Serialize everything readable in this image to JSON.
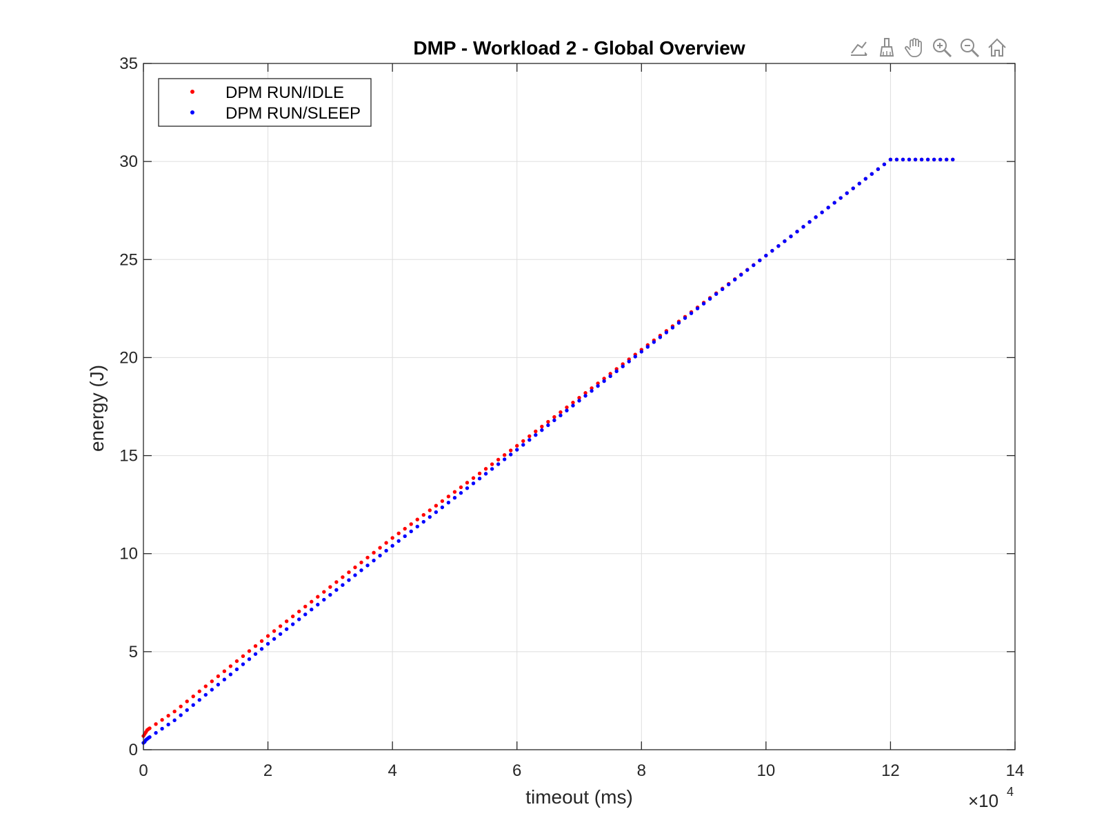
{
  "toolbar": {
    "icons": [
      "data-tips-icon",
      "brush-icon",
      "pan-hand-icon",
      "zoom-in-icon",
      "zoom-out-icon",
      "home-icon"
    ]
  },
  "chart_data": {
    "type": "scatter",
    "title": "DMP - Workload 2 - Global Overview",
    "xlabel": "timeout (ms)",
    "ylabel": "energy (J)",
    "x_exponent_base": "×10",
    "x_exponent_power": "4",
    "xlim": [
      0,
      140000
    ],
    "ylim": [
      0,
      35
    ],
    "xticks": [
      0,
      20000,
      40000,
      60000,
      80000,
      100000,
      120000,
      140000
    ],
    "xtick_labels": [
      "0",
      "2",
      "4",
      "6",
      "8",
      "10",
      "12",
      "14"
    ],
    "yticks": [
      0,
      5,
      10,
      15,
      20,
      25,
      30,
      35
    ],
    "ytick_labels": [
      "0",
      "5",
      "10",
      "15",
      "20",
      "25",
      "30",
      "35"
    ],
    "grid": true,
    "legend_position": "top-left",
    "series": [
      {
        "name": "DPM RUN/IDLE",
        "color": "#ff0000",
        "points": [
          [
            0,
            0.7
          ],
          [
            200,
            0.8
          ],
          [
            400,
            0.9
          ],
          [
            600,
            1.0
          ],
          [
            800,
            1.05
          ],
          [
            5000,
            1.95
          ],
          [
            20000,
            5.8
          ],
          [
            40000,
            10.8
          ],
          [
            60000,
            15.5
          ],
          [
            80000,
            20.4
          ],
          [
            100000,
            25.2
          ],
          [
            120000,
            30.1
          ],
          [
            130000,
            30.1
          ]
        ]
      },
      {
        "name": "DPM RUN/SLEEP",
        "color": "#0000ff",
        "points": [
          [
            0,
            0.35
          ],
          [
            200,
            0.4
          ],
          [
            400,
            0.5
          ],
          [
            600,
            0.55
          ],
          [
            800,
            0.6
          ],
          [
            5000,
            1.5
          ],
          [
            20000,
            5.4
          ],
          [
            40000,
            10.4
          ],
          [
            60000,
            15.3
          ],
          [
            80000,
            20.3
          ],
          [
            100000,
            25.2
          ],
          [
            120000,
            30.1
          ],
          [
            130000,
            30.1
          ]
        ]
      }
    ],
    "point_spacing_x": 1000
  }
}
